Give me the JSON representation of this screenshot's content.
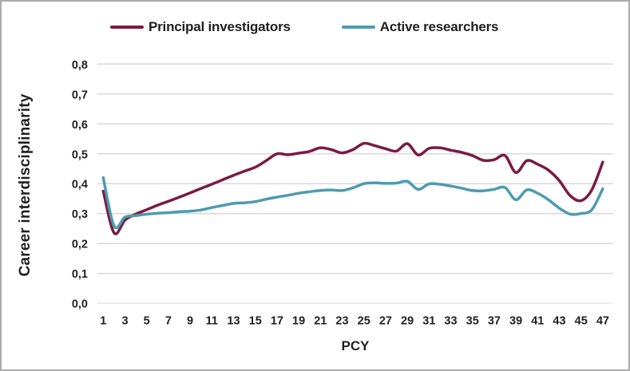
{
  "figure": {
    "background": "#FFFFFF",
    "border_color": "#ABABAB",
    "gridline_color": "#D9D9D9",
    "text_color": "#1F1F1F"
  },
  "chart_data": {
    "type": "line",
    "title": "",
    "xlabel": "PCY",
    "ylabel": "Career interdisciplinarity",
    "legend_position": "top",
    "grid": "horizontal",
    "ylim": [
      0,
      0.8
    ],
    "y_tick_values": [
      0.0,
      0.1,
      0.2,
      0.3,
      0.4,
      0.5,
      0.6,
      0.7,
      0.8
    ],
    "y_tick_labels": [
      "0,0",
      "0,1",
      "0,2",
      "0,3",
      "0,4",
      "0,5",
      "0,6",
      "0,7",
      "0,8"
    ],
    "x": [
      1,
      2,
      3,
      4,
      5,
      6,
      7,
      8,
      9,
      10,
      11,
      12,
      13,
      14,
      15,
      16,
      17,
      18,
      19,
      20,
      21,
      22,
      23,
      24,
      25,
      26,
      27,
      28,
      29,
      30,
      31,
      32,
      33,
      34,
      35,
      36,
      37,
      38,
      39,
      40,
      41,
      42,
      43,
      44,
      45,
      46,
      47
    ],
    "x_tick_labels": [
      "1",
      "3",
      "5",
      "7",
      "9",
      "11",
      "13",
      "15",
      "17",
      "19",
      "21",
      "23",
      "25",
      "27",
      "29",
      "31",
      "33",
      "35",
      "37",
      "39",
      "41",
      "43",
      "45",
      "47"
    ],
    "series": [
      {
        "name": "Principal investigators",
        "color": "#7A1B42",
        "values": [
          0.375,
          0.235,
          0.278,
          0.298,
          0.313,
          0.328,
          0.341,
          0.355,
          0.369,
          0.384,
          0.398,
          0.413,
          0.428,
          0.442,
          0.455,
          0.477,
          0.5,
          0.497,
          0.502,
          0.508,
          0.52,
          0.514,
          0.503,
          0.514,
          0.535,
          0.527,
          0.517,
          0.509,
          0.534,
          0.496,
          0.518,
          0.52,
          0.512,
          0.505,
          0.494,
          0.478,
          0.48,
          0.494,
          0.437,
          0.477,
          0.465,
          0.445,
          0.41,
          0.36,
          0.343,
          0.38,
          0.472
        ]
      },
      {
        "name": "Active researchers",
        "color": "#4E9BAF",
        "values": [
          0.42,
          0.258,
          0.288,
          0.293,
          0.298,
          0.301,
          0.303,
          0.306,
          0.308,
          0.312,
          0.32,
          0.327,
          0.334,
          0.336,
          0.34,
          0.348,
          0.355,
          0.361,
          0.368,
          0.373,
          0.377,
          0.379,
          0.377,
          0.386,
          0.4,
          0.403,
          0.401,
          0.402,
          0.408,
          0.381,
          0.399,
          0.398,
          0.392,
          0.385,
          0.377,
          0.376,
          0.381,
          0.387,
          0.346,
          0.379,
          0.368,
          0.346,
          0.318,
          0.298,
          0.3,
          0.313,
          0.383
        ]
      }
    ]
  }
}
